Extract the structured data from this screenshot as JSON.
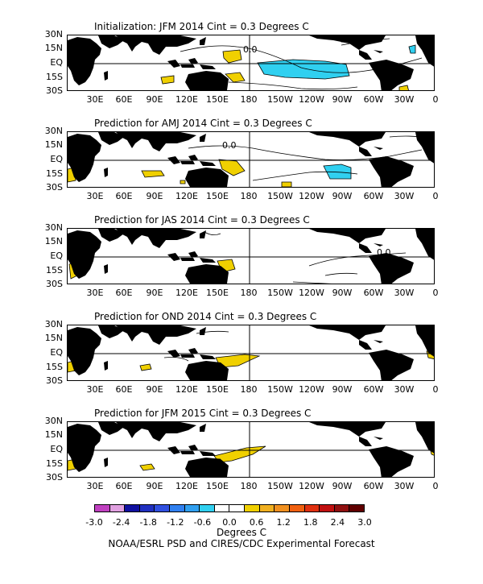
{
  "panels": [
    {
      "title": "Initialization: JFM 2014  Cint = 0.3 Degrees C"
    },
    {
      "title": "Prediction for AMJ 2014  Cint = 0.3 Degrees C"
    },
    {
      "title": "Prediction for JAS 2014  Cint = 0.3 Degrees C"
    },
    {
      "title": "Prediction for OND 2014  Cint = 0.3 Degrees C"
    },
    {
      "title": "Prediction for JFM 2015  Cint = 0.3 Degrees C"
    }
  ],
  "lat_labels": [
    "30N",
    "15N",
    "EQ",
    "15S",
    "30S"
  ],
  "lon_labels": [
    "30E",
    "60E",
    "90E",
    "120E",
    "150E",
    "180",
    "150W",
    "120W",
    "90W",
    "60W",
    "30W",
    "0"
  ],
  "contour_label": "0.0",
  "legend": {
    "colors": [
      "#c040c0",
      "#e0a0e0",
      "#1010a0",
      "#2030c0",
      "#3050e0",
      "#3080f0",
      "#30a0f0",
      "#30d0f0",
      "#ffffff",
      "#ffffff",
      "#f0d000",
      "#f0b020",
      "#f09020",
      "#f06010",
      "#e03010",
      "#c01010",
      "#901010",
      "#600000"
    ],
    "ticks": [
      "-3.0",
      "-2.4",
      "-1.8",
      "-1.2",
      "-0.6",
      "0.0",
      "0.6",
      "1.2",
      "1.8",
      "2.4",
      "3.0"
    ],
    "units": "Degrees C"
  },
  "credit": "NOAA/ESRL PSD and CIRES/CDC Experimental Forecast"
}
